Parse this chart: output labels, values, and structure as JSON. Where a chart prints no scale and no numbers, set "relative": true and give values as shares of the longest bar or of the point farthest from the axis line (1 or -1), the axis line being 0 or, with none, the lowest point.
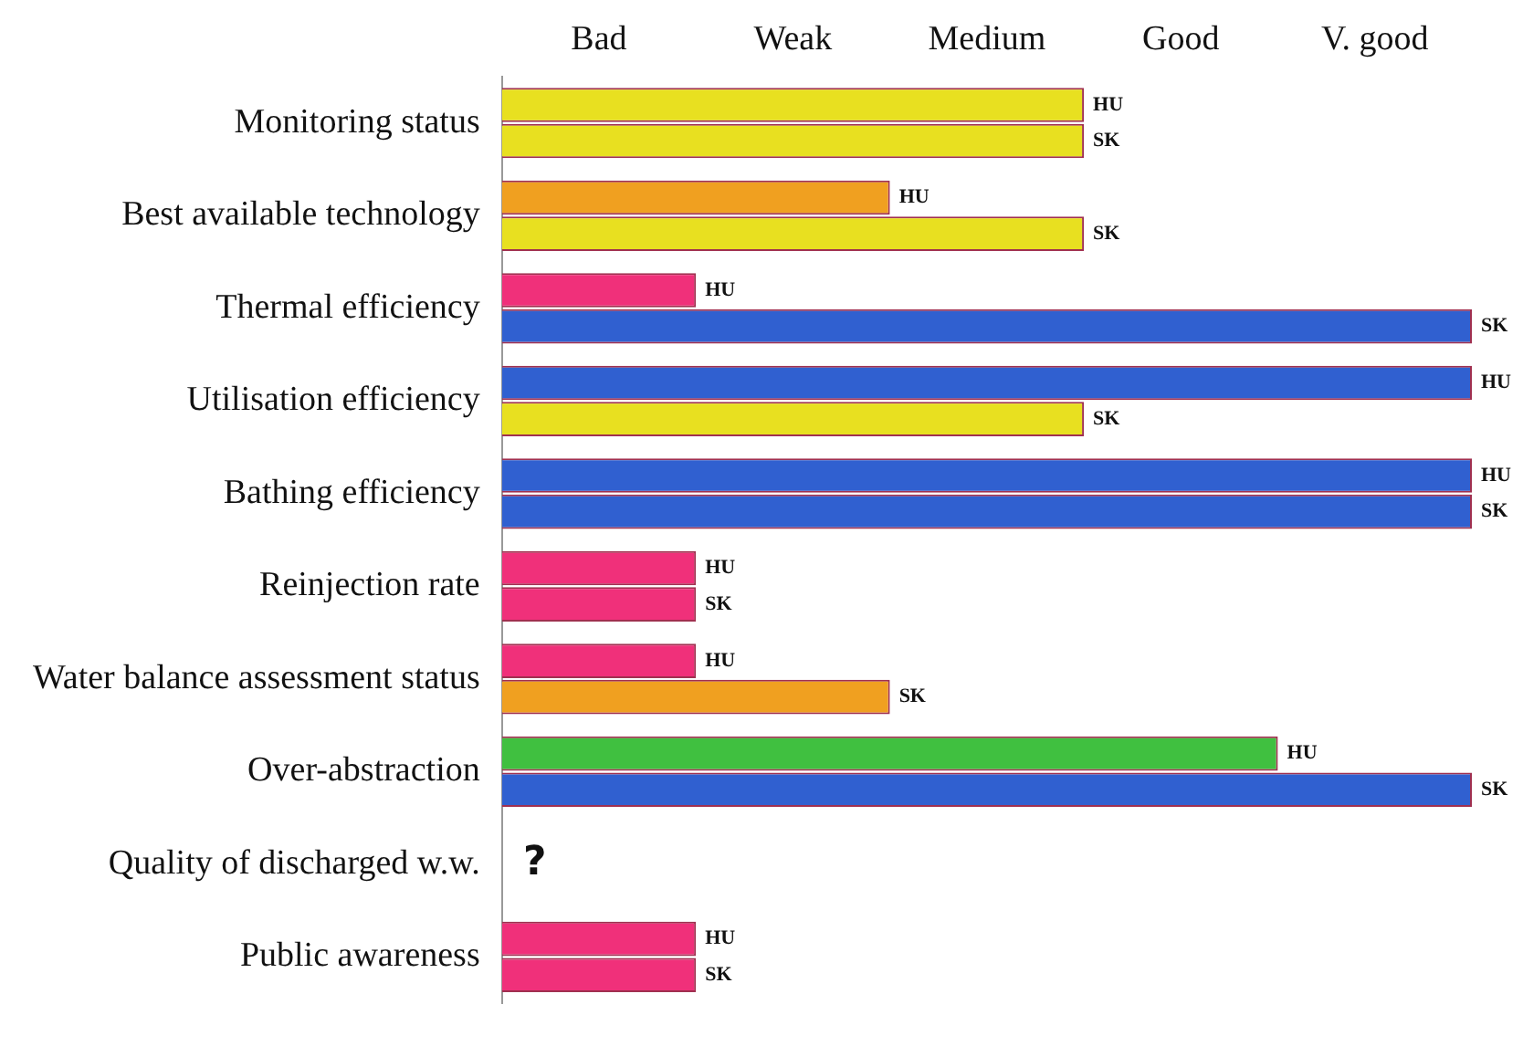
{
  "chart_data": {
    "type": "bar",
    "orientation": "horizontal",
    "relative": true,
    "categories": [
      "Monitoring status",
      "Best available technology",
      "Thermal efficiency",
      "Utilisation efficiency",
      "Bathing efficiency",
      "Reinjection rate",
      "Water balance assessment status",
      "Over-abstraction",
      "Quality of discharged w.w.",
      "Public awareness"
    ],
    "series": [
      {
        "name": "HU",
        "values": [
          0.6,
          0.4,
          0.2,
          1,
          1,
          0.2,
          0.2,
          0.8,
          null,
          0.2
        ],
        "colors": [
          "#e8e020",
          "#f0a020",
          "#f0307a",
          "#3060d0",
          "#3060d0",
          "#f0307a",
          "#f0307a",
          "#40c040",
          null,
          "#f0307a"
        ]
      },
      {
        "name": "SK",
        "values": [
          0.6,
          0.6,
          1,
          0.6,
          1,
          0.2,
          0.4,
          1,
          null,
          0.2
        ],
        "colors": [
          "#e8e020",
          "#e8e020",
          "#3060d0",
          "#e8e020",
          "#3060d0",
          "#f0307a",
          "#f0a020",
          "#3060d0",
          null,
          "#f0307a"
        ]
      }
    ],
    "annotations": [
      "Bad",
      "Weak",
      "Medium",
      "Good",
      "V. good",
      "?"
    ],
    "grid": false,
    "legend": false
  }
}
